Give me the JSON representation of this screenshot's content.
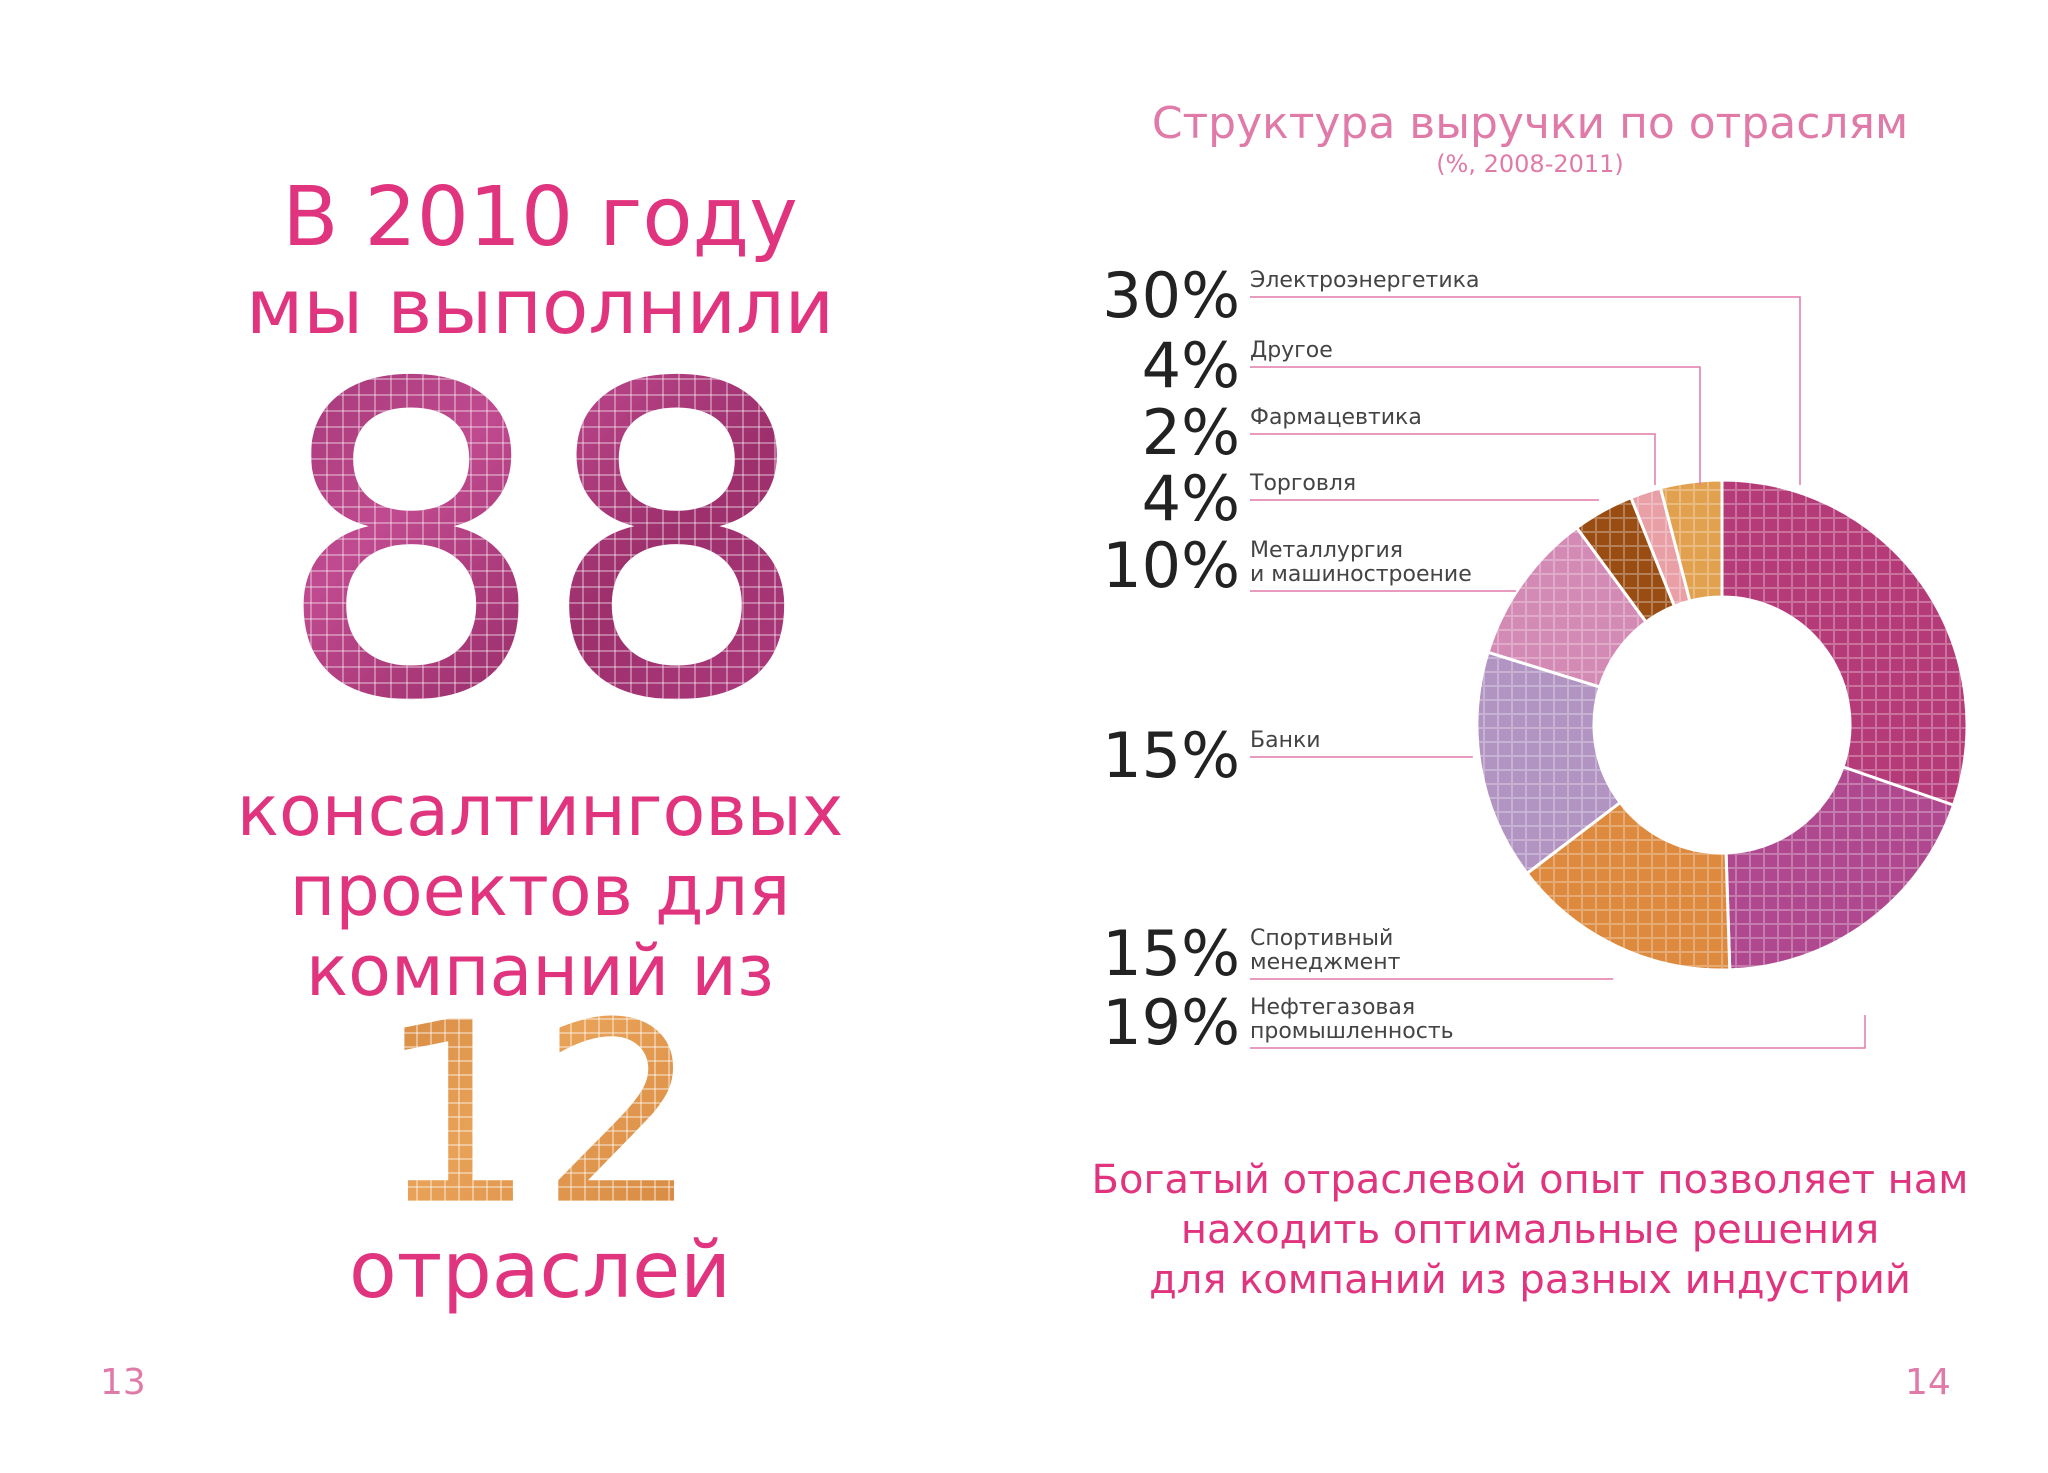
{
  "left": {
    "line1": "В 2010 году",
    "line2": "мы выполнили",
    "big_number": "88",
    "line4": "консалтинговых",
    "line5": "проектов для",
    "line6": "компаний из",
    "big_number2": "12",
    "line8": "отраслей"
  },
  "page_left": "13",
  "page_right": "14",
  "bottom": {
    "line1": "Богатый отраслевой опыт позволяет нам",
    "line2": "находить оптимальные решения",
    "line3": "для компаний из разных индустрий"
  },
  "colors": {
    "accent": "#e0347f",
    "electro": "#b53a78",
    "other": "#e2a14e",
    "pharma": "#e8a0a6",
    "trade": "#9a4d13",
    "metal": "#d38ab4",
    "banks": "#b294c2",
    "sport": "#dd8a3e",
    "oilgas": "#b0488f"
  },
  "chart_data": {
    "type": "pie",
    "title": "Структура выручки по отраслям",
    "subtitle": "(%, 2008-2011)",
    "categories": [
      "Электроэнергетика",
      "Другое",
      "Фармацевтика",
      "Торговля",
      "Металлургия и машиностроение",
      "Банки",
      "Спортивный менеджмент",
      "Нефтегазовая промышленность"
    ],
    "values": [
      30,
      4,
      2,
      4,
      10,
      15,
      15,
      19
    ],
    "value_labels": [
      "30%",
      "4%",
      "2%",
      "4%",
      "10%",
      "15%",
      "15%",
      "19%"
    ],
    "label_lines": [
      [
        "Электроэнергетика"
      ],
      [
        "Другое"
      ],
      [
        "Фармацевтика"
      ],
      [
        "Торговля"
      ],
      [
        "Металлургия",
        "и машиностроение"
      ],
      [
        "Банки"
      ],
      [
        "Спортивный",
        "менеджмент"
      ],
      [
        "Нефтегазовая",
        "промышленность"
      ]
    ],
    "pie_order": [
      "Электроэнергетика",
      "Нефтегазовая промышленность",
      "Спортивный менеджмент",
      "Банки",
      "Металлургия и машиностроение",
      "Торговля",
      "Фармацевтика",
      "Другое"
    ],
    "donut": true
  }
}
